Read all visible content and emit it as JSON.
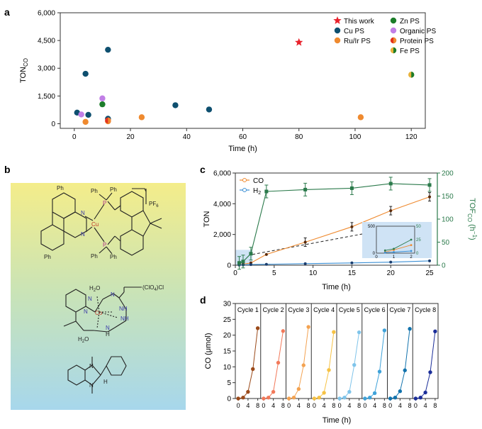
{
  "panels": {
    "a": "a",
    "b": "b",
    "c": "c",
    "d": "d"
  },
  "chart_data": [
    {
      "panel": "a",
      "type": "scatter",
      "xlabel": "Time (h)",
      "ylabel": "TON",
      "ylabel_sub": "CO",
      "xlim": [
        -5,
        125
      ],
      "ylim": [
        -250,
        6000
      ],
      "xticks": [
        "0",
        "20",
        "40",
        "60",
        "80",
        "100",
        "120"
      ],
      "yticks": [
        "0",
        "1,500",
        "3,000",
        "4,500",
        "6,000"
      ],
      "legend_placement": "top-right",
      "series": [
        {
          "name": "This work",
          "color": "#e8212b",
          "marker": "star",
          "points": [
            [
              80,
              4400
            ]
          ]
        },
        {
          "name": "Cu PS",
          "color": "#0e4f6f",
          "marker": "circle",
          "points": [
            [
              1,
              600
            ],
            [
              4,
              2700
            ],
            [
              5,
              480
            ],
            [
              12,
              4000
            ],
            [
              12,
              270
            ],
            [
              36,
              1000
            ],
            [
              48,
              770
            ]
          ]
        },
        {
          "name": "Ru/Ir PS",
          "color": "#ef8a2f",
          "marker": "circle",
          "points": [
            [
              4,
              100
            ],
            [
              12,
              130
            ],
            [
              24,
              350
            ],
            [
              102,
              350
            ]
          ]
        },
        {
          "name": "Zn PS",
          "color": "#1c7d2a",
          "marker": "circle",
          "points": [
            [
              10,
              1050
            ]
          ]
        },
        {
          "name": "Organic PS",
          "color": "#c17fe6",
          "marker": "circle",
          "points": [
            [
              2.5,
              500
            ],
            [
              10,
              1370
            ]
          ]
        },
        {
          "name": "Protein PS",
          "color": "#e3321f",
          "marker": "half-orange",
          "points": [
            [
              12,
              180
            ]
          ]
        },
        {
          "name": "Fe PS",
          "color": "#e8b23c",
          "marker": "half-green",
          "points": [
            [
              120,
              2650
            ]
          ]
        }
      ]
    },
    {
      "panel": "c",
      "type": "line",
      "xlabel": "Time (h)",
      "ylabel": "TON",
      "ylabel2": "TOF",
      "ylabel2_sub": "CO",
      "ylabel2_unit": " (h",
      "ylabel2_sup": "−1",
      "ylabel2_end": ")",
      "xlim": [
        0,
        26
      ],
      "ylim": [
        0,
        6000
      ],
      "y2lim": [
        0,
        200
      ],
      "xticks": [
        "0",
        "5",
        "10",
        "15",
        "20",
        "25"
      ],
      "yticks": [
        "0",
        "2,000",
        "4,000",
        "6,000"
      ],
      "y2ticks": [
        "0",
        "50",
        "100",
        "150",
        "200"
      ],
      "legend_placement": "top-left",
      "series": [
        {
          "name": "CO",
          "color": "#ef8a2f",
          "axis": "left",
          "x": [
            0.5,
            1,
            2,
            4,
            9,
            15,
            20,
            25
          ],
          "y": [
            20,
            60,
            150,
            700,
            1500,
            2500,
            3550,
            4450
          ]
        },
        {
          "name": "H",
          "name_sub": "2",
          "color": "#3b8fd4",
          "axis": "left",
          "x": [
            0.5,
            1,
            2,
            4,
            9,
            15,
            20,
            25
          ],
          "y": [
            10,
            20,
            40,
            60,
            100,
            150,
            200,
            280
          ]
        },
        {
          "name": "TOF",
          "color": "#2b7a4b",
          "axis": "right",
          "x": [
            0.5,
            1,
            2,
            4,
            9,
            15,
            20,
            25
          ],
          "y": [
            5,
            8,
            25,
            160,
            164,
            167,
            177,
            174
          ]
        }
      ],
      "inset": {
        "xlim": [
          0,
          2.2
        ],
        "ylim": [
          0,
          500
        ],
        "y2lim": [
          0,
          50
        ],
        "xticks": [
          "0",
          "1",
          "2"
        ],
        "yticks": [
          "0",
          "500"
        ],
        "y2ticks": [
          "0",
          "25",
          "50"
        ]
      }
    },
    {
      "panel": "d",
      "type": "line",
      "xlabel": "Time (h)",
      "ylabel": "CO (μmol)",
      "ylim": [
        0,
        30
      ],
      "yticks": [
        "0",
        "5",
        "10",
        "15",
        "20",
        "25",
        "30"
      ],
      "xticks": [
        "0",
        "4",
        "8"
      ],
      "x": [
        0,
        2,
        4,
        6,
        8
      ],
      "series": [
        {
          "name": "Cycle 1",
          "color": "#9b4a1a",
          "values": [
            0,
            0.3,
            2.1,
            9.3,
            22.2
          ]
        },
        {
          "name": "Cycle 2",
          "color": "#f2795a",
          "values": [
            0,
            0.3,
            2.1,
            11.3,
            21.3
          ]
        },
        {
          "name": "Cycle 3",
          "color": "#f3a251",
          "values": [
            0,
            0.3,
            3.0,
            10.5,
            22.6
          ]
        },
        {
          "name": "Cycle 4",
          "color": "#f6c244",
          "values": [
            0,
            0.3,
            1.8,
            9.0,
            21.0
          ]
        },
        {
          "name": "Cycle 5",
          "color": "#7fc4ea",
          "values": [
            0,
            0.3,
            2.1,
            10.6,
            20.9
          ]
        },
        {
          "name": "Cycle 6",
          "color": "#3fa2d9",
          "values": [
            0,
            0.3,
            1.7,
            8.5,
            21.5
          ]
        },
        {
          "name": "Cycle 7",
          "color": "#1273ad",
          "values": [
            0,
            0.3,
            2.3,
            8.9,
            22.0
          ]
        },
        {
          "name": "Cycle 8",
          "color": "#1b2e99",
          "values": [
            0,
            0.3,
            1.9,
            8.3,
            21.2
          ]
        }
      ]
    }
  ],
  "structures": {
    "cu_complex": {
      "ph1": "Ph",
      "ph2": "Ph",
      "ph3": "Ph",
      "ph4": "Ph",
      "ph5": "Ph",
      "ph6": "Ph",
      "p1": "P",
      "p2": "P",
      "n1": "N",
      "n2": "N",
      "cu": "Cu",
      "counterion": "PF",
      "counterion_sub": "6"
    },
    "co_complex": {
      "h2o_top": "H",
      "h2o_top_sub": "2",
      "h2o_top_end": "O",
      "h2o_bot": "H",
      "h2o_bot_sub": "2",
      "h2o_bot_end": "O",
      "n1": "N",
      "n2": "N",
      "n3": "N",
      "nh1": "NH",
      "nh2": "NH",
      "nh3": "N",
      "h": "H",
      "co": "Co",
      "counterion": "(ClO",
      "counterion_sub": "4",
      "counterion_end": ")Cl"
    },
    "bih": {
      "n1": "N",
      "n2": "N",
      "h": "H"
    }
  }
}
